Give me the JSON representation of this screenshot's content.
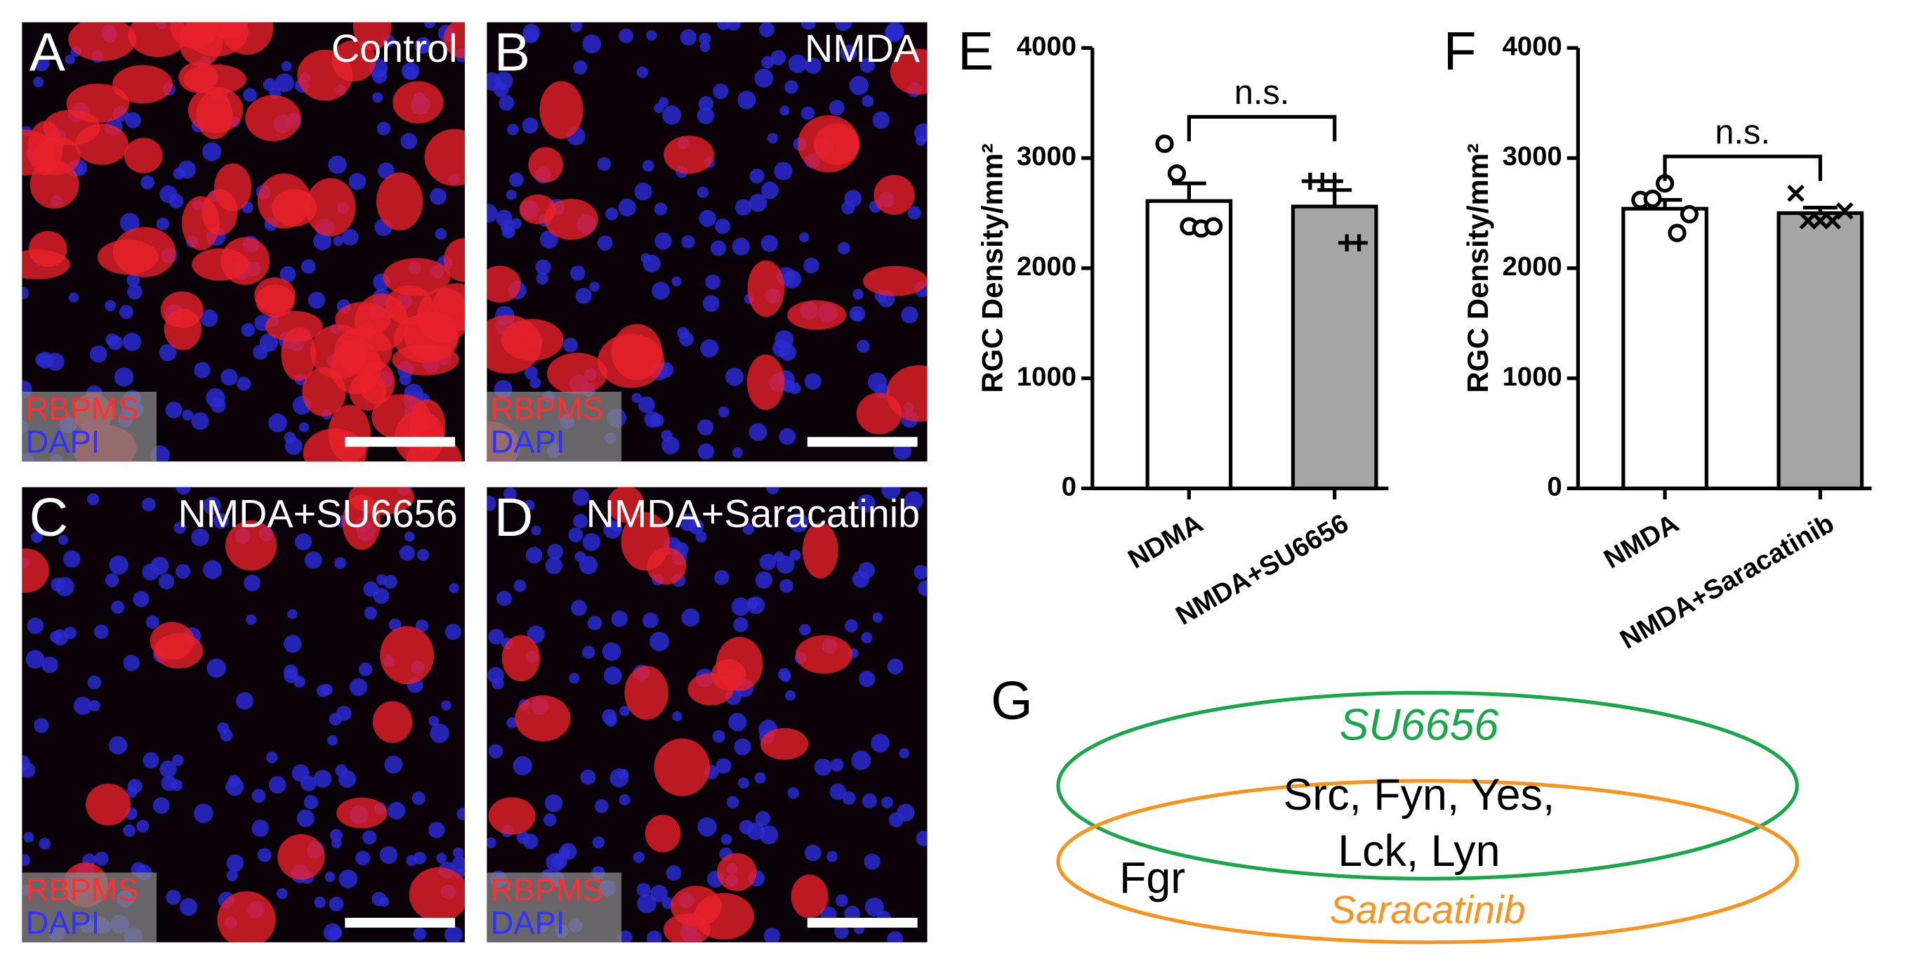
{
  "panels": [
    {
      "letter": "A",
      "title": "Control",
      "stain1": "RBPMS",
      "stain2": "DAPI"
    },
    {
      "letter": "B",
      "title": "NMDA",
      "stain1": "RBPMS",
      "stain2": "DAPI"
    },
    {
      "letter": "C",
      "title": "NMDA+SU6656",
      "stain1": "RBPMS",
      "stain2": "DAPI"
    },
    {
      "letter": "D",
      "title": "NMDA+Saracatinib",
      "stain1": "RBPMS",
      "stain2": "DAPI"
    }
  ],
  "chart_data": [
    {
      "type": "bar",
      "letter": "E",
      "ylabel": "RGC Density/mm²",
      "categories": [
        "NDMA",
        "NMDA+SU6656"
      ],
      "values": [
        2610,
        2560
      ],
      "errors": [
        160,
        150
      ],
      "colors": [
        "#ffffff",
        "#a6a6a6"
      ],
      "markers": [
        "circle",
        "plus"
      ],
      "points": [
        [
          3130,
          2860,
          2380,
          2360,
          2380
        ],
        [
          2790,
          2790,
          2790,
          2230,
          2230
        ]
      ],
      "annotation": "n.s.",
      "ylim": [
        0,
        4000
      ],
      "yticks": [
        0,
        1000,
        2000,
        3000,
        4000
      ]
    },
    {
      "type": "bar",
      "letter": "F",
      "ylabel": "RGC Density/mm²",
      "categories": [
        "NMDA",
        "NMDA+Saracatinib"
      ],
      "values": [
        2540,
        2500
      ],
      "errors": [
        80,
        50
      ],
      "colors": [
        "#ffffff",
        "#a6a6a6"
      ],
      "markers": [
        "circle",
        "cross"
      ],
      "points": [
        [
          2620,
          2630,
          2770,
          2320,
          2490
        ],
        [
          2680,
          2430,
          2430,
          2430,
          2520
        ]
      ],
      "annotation": "n.s.",
      "ylim": [
        0,
        4000
      ],
      "yticks": [
        0,
        1000,
        2000,
        3000,
        4000
      ]
    }
  ],
  "venn": {
    "letter": "G",
    "set1": "SU6656",
    "set2": "Saracatinib",
    "shared_line1": "Src, Fyn, Yes,",
    "shared_line2": "Lck, Lyn",
    "only2": "Fgr"
  }
}
